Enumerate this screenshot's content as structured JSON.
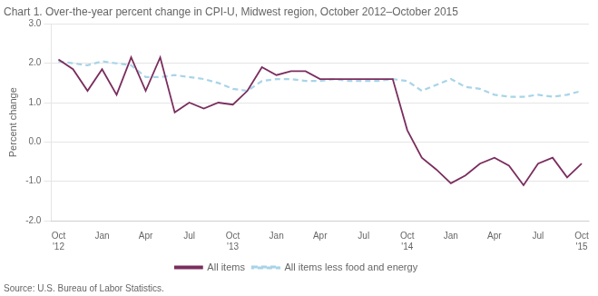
{
  "chart_data": {
    "type": "line",
    "title": "Chart 1. Over-the-year percent change in CPI-U, Midwest region, October 2012–October 2015",
    "ylabel": "Percent change",
    "annotations": [
      "Source: U.S. Bureau of Labor Statistics."
    ],
    "categories": [
      "Oct\n'12",
      null,
      null,
      "Jan",
      null,
      null,
      "Apr",
      null,
      null,
      "Jul",
      null,
      null,
      "Oct\n'13",
      null,
      null,
      "Jan",
      null,
      null,
      "Apr",
      null,
      null,
      "Jul",
      null,
      null,
      "Oct\n'14",
      null,
      null,
      "Jan",
      null,
      null,
      "Apr",
      null,
      null,
      "Jul",
      null,
      null,
      "Oct\n'15"
    ],
    "series": [
      {
        "name": "All items",
        "color": "#7b2d5e",
        "line_style": "solid",
        "values": [
          2.1,
          1.85,
          1.3,
          1.85,
          1.2,
          2.15,
          1.3,
          2.15,
          0.75,
          1.0,
          0.85,
          1.0,
          0.95,
          1.3,
          1.9,
          1.7,
          1.8,
          1.8,
          1.6,
          1.6,
          1.6,
          1.6,
          1.6,
          1.6,
          0.3,
          -0.4,
          -0.7,
          -1.05,
          -0.85,
          -0.55,
          -0.4,
          -0.6,
          -1.1,
          -0.55,
          -0.4,
          -0.9,
          -0.55
        ]
      },
      {
        "name": "All items less food and energy",
        "color": "#a8d4e8",
        "line_style": "dashed",
        "values": [
          2.05,
          2.0,
          1.95,
          2.05,
          2.0,
          1.95,
          1.65,
          1.65,
          1.7,
          1.65,
          1.6,
          1.5,
          1.35,
          1.3,
          1.55,
          1.6,
          1.6,
          1.55,
          1.55,
          1.6,
          1.55,
          1.55,
          1.55,
          1.6,
          1.55,
          1.3,
          1.45,
          1.6,
          1.4,
          1.35,
          1.2,
          1.15,
          1.15,
          1.2,
          1.15,
          1.2,
          1.3
        ]
      }
    ],
    "ylim": [
      -2.0,
      3.0
    ],
    "yticks": [
      {
        "value": -2.0,
        "label": "-2.0"
      },
      {
        "value": -1.0,
        "label": "-1.0"
      },
      {
        "value": 0.0,
        "label": "0.0"
      },
      {
        "value": 1.0,
        "label": "1.0"
      },
      {
        "value": 2.0,
        "label": "2.0"
      },
      {
        "value": 3.0,
        "label": "3.0"
      }
    ],
    "grid": "y",
    "legend": "bottom"
  }
}
